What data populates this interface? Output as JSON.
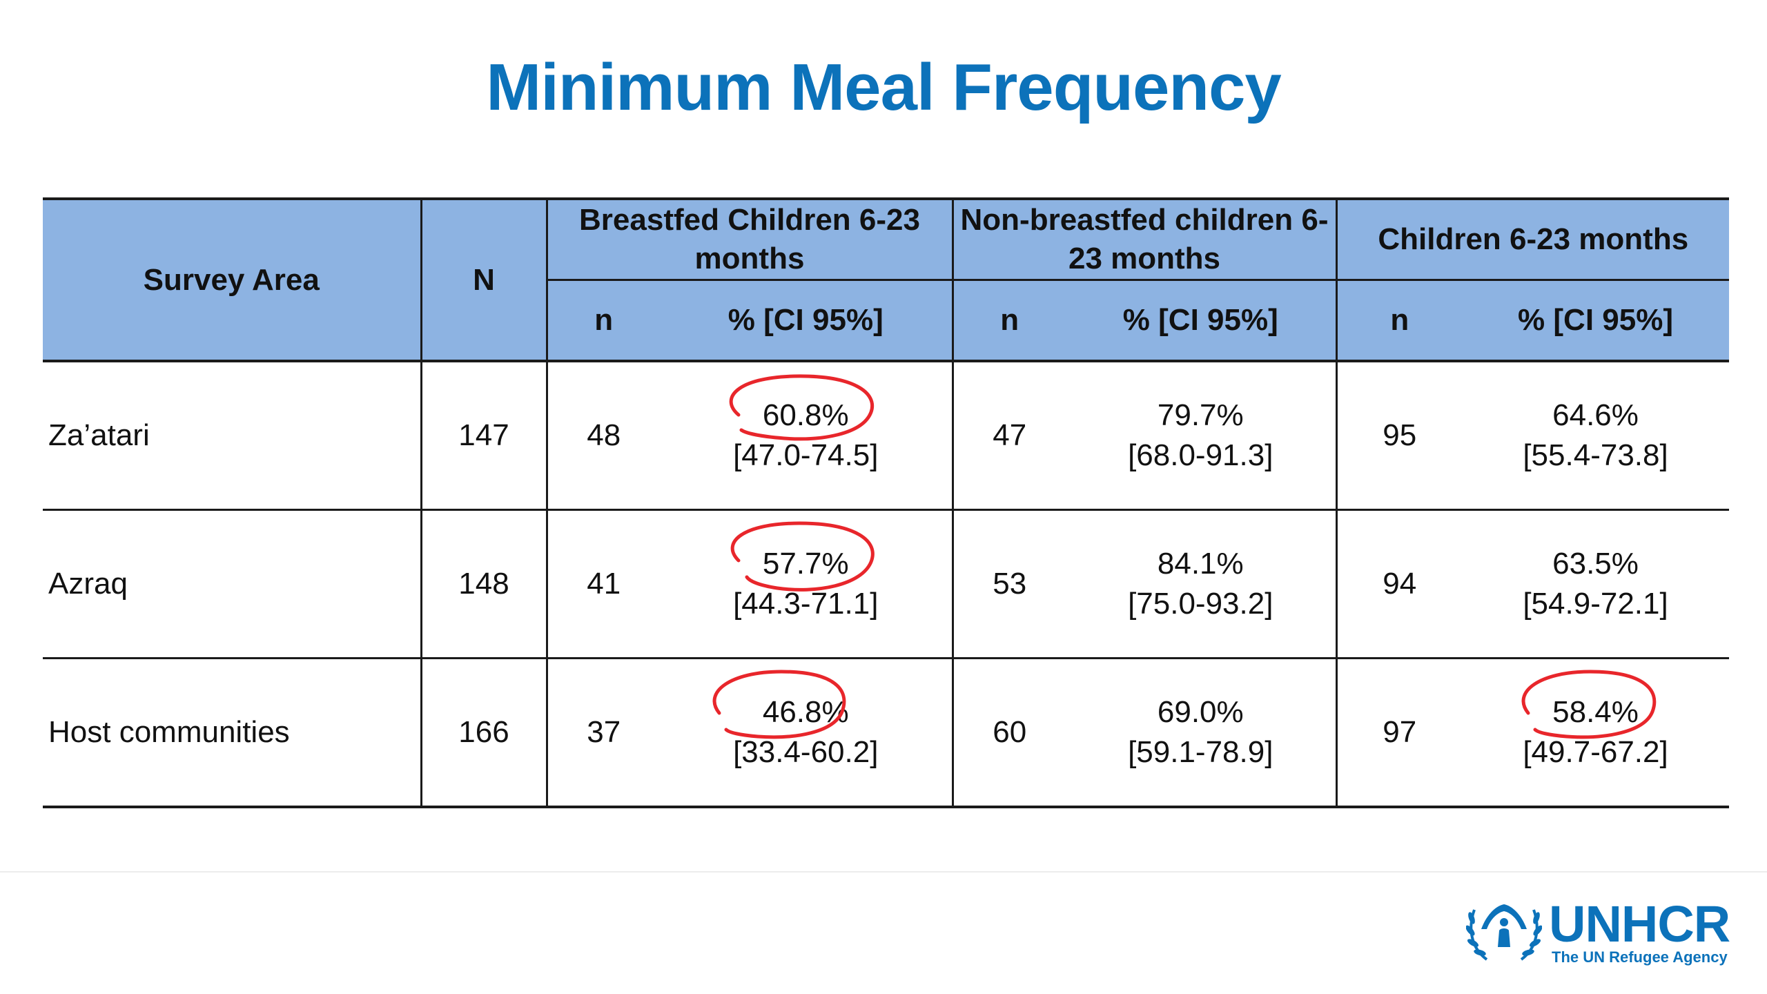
{
  "title": "Minimum Meal Frequency",
  "table": {
    "headers": {
      "survey_area": "Survey Area",
      "N": "N",
      "groups": [
        {
          "label": "Breastfed Children 6-23 months",
          "n": "n",
          "pct_line1": "%",
          "pct_line2": "[CI 95%]"
        },
        {
          "label": "Non-breastfed children 6-23 months",
          "n": "n",
          "pct_line1": "%",
          "pct_line2": "[CI 95%]"
        },
        {
          "label": "Children 6-23 months",
          "n": "n",
          "pct_line1": "%",
          "pct_line2": "[CI 95%]"
        }
      ]
    },
    "rows": [
      {
        "area": "Za’atari",
        "N": "147",
        "cells": [
          {
            "n": "48",
            "pct": "60.8%",
            "ci": "[47.0-74.5]",
            "circled": true
          },
          {
            "n": "47",
            "pct": "79.7%",
            "ci": "[68.0-91.3]",
            "circled": false
          },
          {
            "n": "95",
            "pct": "64.6%",
            "ci": "[55.4-73.8]",
            "circled": false
          }
        ]
      },
      {
        "area": "Azraq",
        "N": "148",
        "cells": [
          {
            "n": "41",
            "pct": "57.7%",
            "ci": "[44.3-71.1]",
            "circled": true
          },
          {
            "n": "53",
            "pct": "84.1%",
            "ci": "[75.0-93.2]",
            "circled": false
          },
          {
            "n": "94",
            "pct": "63.5%",
            "ci": "[54.9-72.1]",
            "circled": false
          }
        ]
      },
      {
        "area": "Host communities",
        "N": "166",
        "cells": [
          {
            "n": "37",
            "pct": "46.8%",
            "ci": "[33.4-60.2]",
            "circled": true
          },
          {
            "n": "60",
            "pct": "69.0%",
            "ci": "[59.1-78.9]",
            "circled": false
          },
          {
            "n": "97",
            "pct": "58.4%",
            "ci": "[49.7-67.2]",
            "circled": true
          }
        ]
      }
    ]
  },
  "annotation_color": "#e8262b",
  "logo": {
    "wordmark": "UNHCR",
    "tagline": "The UN Refugee Agency",
    "icon": "unhcr-emblem-icon",
    "color": "#0c72ba"
  }
}
